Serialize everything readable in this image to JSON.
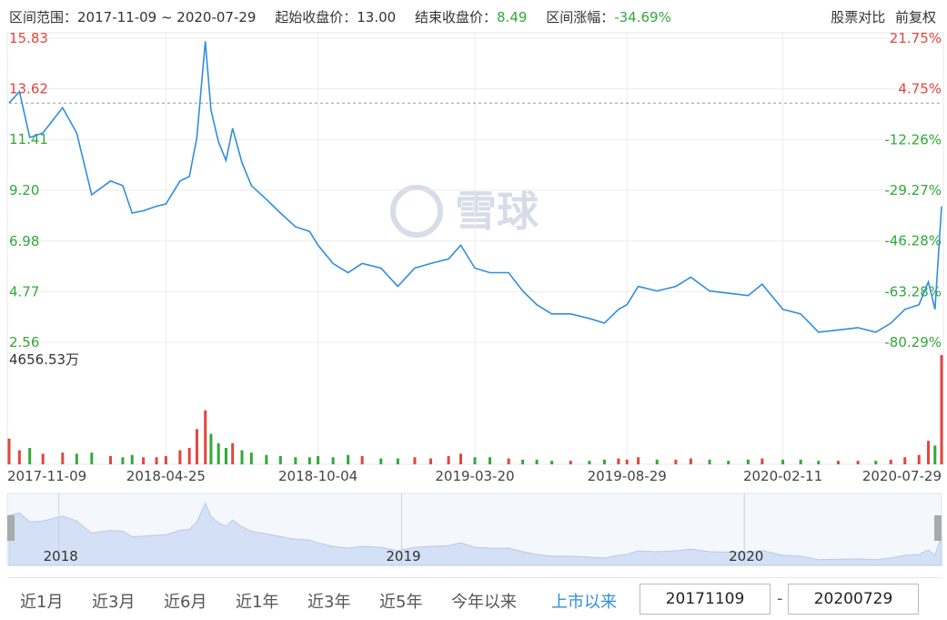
{
  "header": {
    "range_label": "区间范围：",
    "range": "2017-11-09 ~ 2020-07-29",
    "start_label": "起始收盘价：",
    "start": "13.00",
    "end_label": "结束收盘价：",
    "end": "8.49",
    "change_label": "区间涨幅：",
    "change": "-34.69%",
    "compare": "股票对比",
    "adjust": "前复权"
  },
  "chart_data": {
    "type": "line",
    "watermark": "雪球",
    "x": [
      "2017-11-09",
      "2017-11-20",
      "2017-12-01",
      "2017-12-15",
      "2018-01-05",
      "2018-01-20",
      "2018-02-05",
      "2018-02-25",
      "2018-03-10",
      "2018-03-20",
      "2018-04-01",
      "2018-04-15",
      "2018-04-25",
      "2018-05-10",
      "2018-05-20",
      "2018-05-28",
      "2018-06-06",
      "2018-06-12",
      "2018-06-20",
      "2018-06-28",
      "2018-07-05",
      "2018-07-15",
      "2018-07-25",
      "2018-08-10",
      "2018-08-25",
      "2018-09-10",
      "2018-09-25",
      "2018-10-04",
      "2018-10-20",
      "2018-11-05",
      "2018-11-20",
      "2018-12-10",
      "2018-12-28",
      "2019-01-15",
      "2019-02-01",
      "2019-02-20",
      "2019-03-05",
      "2019-03-20",
      "2019-04-05",
      "2019-04-25",
      "2019-05-10",
      "2019-05-25",
      "2019-06-10",
      "2019-06-30",
      "2019-07-20",
      "2019-08-05",
      "2019-08-20",
      "2019-08-29",
      "2019-09-10",
      "2019-09-30",
      "2019-10-20",
      "2019-11-05",
      "2019-11-25",
      "2019-12-15",
      "2020-01-05",
      "2020-01-20",
      "2020-02-11",
      "2020-03-01",
      "2020-03-20",
      "2020-04-10",
      "2020-05-01",
      "2020-05-20",
      "2020-06-05",
      "2020-06-20",
      "2020-07-05",
      "2020-07-15",
      "2020-07-22",
      "2020-07-29"
    ],
    "series": [
      {
        "name": "收盘价",
        "color": "#2f8ee0",
        "values": [
          13.0,
          13.5,
          11.5,
          11.7,
          12.8,
          11.7,
          9.0,
          9.6,
          9.4,
          8.2,
          8.3,
          8.5,
          8.6,
          9.6,
          9.8,
          11.5,
          15.7,
          12.7,
          11.3,
          10.5,
          11.9,
          10.4,
          9.4,
          8.8,
          8.2,
          7.6,
          7.4,
          6.8,
          6.0,
          5.6,
          6.0,
          5.8,
          5.0,
          5.8,
          6.0,
          6.2,
          6.8,
          5.8,
          5.6,
          5.6,
          4.8,
          4.2,
          3.8,
          3.8,
          3.6,
          3.4,
          4.0,
          4.2,
          5.0,
          4.8,
          5.0,
          5.4,
          4.8,
          4.7,
          4.6,
          5.1,
          4.0,
          3.8,
          3.0,
          3.1,
          3.2,
          3.0,
          3.4,
          4.0,
          4.2,
          5.2,
          4.0,
          8.49
        ]
      }
    ],
    "volume": {
      "values": [
        1100,
        600,
        700,
        450,
        500,
        450,
        500,
        350,
        300,
        400,
        300,
        300,
        350,
        600,
        700,
        1500,
        2300,
        1300,
        900,
        700,
        900,
        600,
        500,
        400,
        350,
        300,
        300,
        350,
        300,
        400,
        350,
        250,
        250,
        300,
        250,
        350,
        450,
        300,
        300,
        250,
        200,
        200,
        150,
        150,
        150,
        200,
        250,
        200,
        300,
        200,
        200,
        250,
        200,
        150,
        200,
        250,
        200,
        200,
        150,
        150,
        150,
        150,
        200,
        300,
        400,
        1000,
        800,
        4656.53
      ],
      "ylim": [
        0,
        4656.53
      ],
      "max_label": "4656.53万",
      "up_color": "#e2463d",
      "down_color": "#33a93a"
    },
    "baseline": 13,
    "ylim": [
      2.56,
      15.83
    ],
    "yticks": [
      15.83,
      13.62,
      11.41,
      {
        "value": 9.2,
        "label": "9.20"
      },
      6.98,
      4.77,
      2.56
    ],
    "y2lim": [
      -80.29,
      21.75
    ],
    "y2ticks": [
      {
        "value": 21.75,
        "label": "21.75%"
      },
      {
        "value": 4.75,
        "label": "4.75%"
      },
      {
        "value": -12.26,
        "label": "-12.26%"
      },
      {
        "value": -29.27,
        "label": "-29.27%"
      },
      {
        "value": -46.28,
        "label": "-46.28%"
      },
      {
        "value": -63.28,
        "label": "-63.28%"
      },
      {
        "value": -80.29,
        "label": "-80.29%"
      }
    ],
    "xticks": [
      "2017-11-09",
      "2018-04-25",
      "2018-10-04",
      "2019-03-20",
      "2019-08-29",
      "2020-02-11",
      "2020-07-29"
    ],
    "grid": true,
    "up_color": "#e2463d",
    "down_color": "#33a93a"
  },
  "navigator": {
    "years": [
      "2018",
      "2019",
      "2020"
    ]
  },
  "controls": {
    "periods": [
      "近1月",
      "近3月",
      "近6月",
      "近1年",
      "近3年",
      "近5年",
      "今年以来",
      "上市以来"
    ],
    "active": 7,
    "start_date": "20171109",
    "separator": "-",
    "end_date": "20200729"
  }
}
